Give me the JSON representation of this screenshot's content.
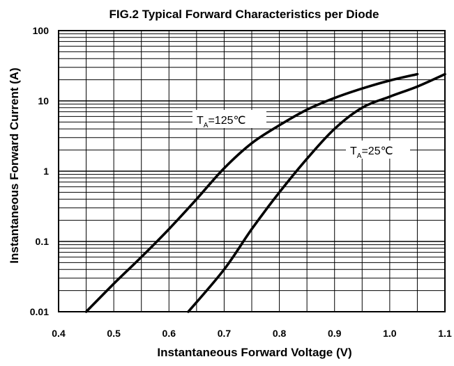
{
  "chart_data": {
    "type": "line",
    "title": "FIG.2 Typical Forward Characteristics per Diode",
    "xlabel": "Instantaneous Forward Voltage (V)",
    "ylabel": "Instantaneous Forward Current (A)",
    "xlim": [
      0.4,
      1.1
    ],
    "ylim": [
      0.01,
      100
    ],
    "yscale": "log",
    "grid": true,
    "x_ticks": [
      "0.4",
      "0.5",
      "0.6",
      "0.7",
      "0.8",
      "0.9",
      "1.0",
      "1.1"
    ],
    "y_ticks": [
      "0.01",
      "0.1",
      "1",
      "10",
      "100"
    ],
    "series": [
      {
        "label_main": "T",
        "label_sub": "A",
        "label_rest": "=125℃",
        "x": [
          0.45,
          0.5,
          0.55,
          0.6,
          0.65,
          0.7,
          0.75,
          0.8,
          0.85,
          0.9,
          0.95,
          1.0,
          1.05
        ],
        "y": [
          0.01,
          0.025,
          0.06,
          0.15,
          0.4,
          1.1,
          2.5,
          4.5,
          7.5,
          11,
          15,
          19.5,
          24
        ]
      },
      {
        "label_main": "T",
        "label_sub": "A",
        "label_rest": "=25℃",
        "x": [
          0.635,
          0.7,
          0.75,
          0.8,
          0.85,
          0.9,
          0.95,
          1.0,
          1.05,
          1.1
        ],
        "y": [
          0.01,
          0.04,
          0.15,
          0.5,
          1.5,
          4,
          8,
          11.5,
          16,
          24
        ]
      }
    ]
  }
}
